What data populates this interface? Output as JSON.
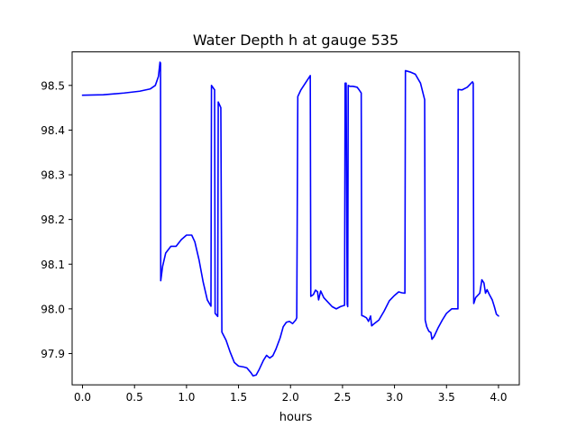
{
  "chart_data": {
    "type": "line",
    "title": "Water Depth h at gauge 535",
    "xlabel": "hours",
    "ylabel": "",
    "xlim": [
      -0.1,
      4.2
    ],
    "ylim": [
      97.83,
      98.575
    ],
    "xticks": [
      0.0,
      0.5,
      1.0,
      1.5,
      2.0,
      2.5,
      3.0,
      3.5,
      4.0
    ],
    "xtick_labels": [
      "0.0",
      "0.5",
      "1.0",
      "1.5",
      "2.0",
      "2.5",
      "3.0",
      "3.5",
      "4.0"
    ],
    "yticks": [
      97.9,
      98.0,
      98.1,
      98.2,
      98.3,
      98.4,
      98.5
    ],
    "ytick_labels": [
      "97.9",
      "98.0",
      "98.1",
      "98.2",
      "98.3",
      "98.4",
      "98.5"
    ],
    "grid": false,
    "series": [
      {
        "color": "#0000ff",
        "points": [
          [
            0.0,
            98.478
          ],
          [
            0.2,
            98.479
          ],
          [
            0.4,
            98.483
          ],
          [
            0.55,
            98.487
          ],
          [
            0.65,
            98.492
          ],
          [
            0.7,
            98.5
          ],
          [
            0.73,
            98.52
          ],
          [
            0.745,
            98.552
          ],
          [
            0.75,
            98.55
          ],
          [
            0.752,
            98.063
          ],
          [
            0.77,
            98.095
          ],
          [
            0.8,
            98.125
          ],
          [
            0.85,
            98.14
          ],
          [
            0.9,
            98.14
          ],
          [
            0.95,
            98.155
          ],
          [
            1.0,
            98.165
          ],
          [
            1.05,
            98.165
          ],
          [
            1.08,
            98.15
          ],
          [
            1.12,
            98.11
          ],
          [
            1.16,
            98.06
          ],
          [
            1.2,
            98.02
          ],
          [
            1.235,
            98.006
          ],
          [
            1.24,
            98.5
          ],
          [
            1.27,
            98.49
          ],
          [
            1.275,
            97.99
          ],
          [
            1.3,
            97.983
          ],
          [
            1.305,
            98.463
          ],
          [
            1.33,
            98.45
          ],
          [
            1.34,
            97.948
          ],
          [
            1.38,
            97.93
          ],
          [
            1.42,
            97.903
          ],
          [
            1.46,
            97.88
          ],
          [
            1.5,
            97.872
          ],
          [
            1.55,
            97.87
          ],
          [
            1.58,
            97.868
          ],
          [
            1.62,
            97.857
          ],
          [
            1.64,
            97.85
          ],
          [
            1.67,
            97.852
          ],
          [
            1.7,
            97.865
          ],
          [
            1.74,
            97.885
          ],
          [
            1.77,
            97.896
          ],
          [
            1.8,
            97.89
          ],
          [
            1.83,
            97.895
          ],
          [
            1.86,
            97.91
          ],
          [
            1.9,
            97.935
          ],
          [
            1.93,
            97.96
          ],
          [
            1.96,
            97.97
          ],
          [
            1.99,
            97.972
          ],
          [
            2.02,
            97.967
          ],
          [
            2.05,
            97.975
          ],
          [
            2.06,
            97.98
          ],
          [
            2.07,
            98.475
          ],
          [
            2.1,
            98.49
          ],
          [
            2.19,
            98.522
          ],
          [
            2.195,
            98.028
          ],
          [
            2.22,
            98.032
          ],
          [
            2.24,
            98.042
          ],
          [
            2.26,
            98.038
          ],
          [
            2.27,
            98.02
          ],
          [
            2.29,
            98.04
          ],
          [
            2.32,
            98.025
          ],
          [
            2.36,
            98.015
          ],
          [
            2.4,
            98.005
          ],
          [
            2.44,
            98.0
          ],
          [
            2.48,
            98.005
          ],
          [
            2.52,
            98.008
          ],
          [
            2.525,
            98.505
          ],
          [
            2.535,
            98.505
          ],
          [
            2.545,
            98.01
          ],
          [
            2.55,
            98.005
          ],
          [
            2.555,
            98.5
          ],
          [
            2.57,
            98.498
          ],
          [
            2.6,
            98.498
          ],
          [
            2.64,
            98.496
          ],
          [
            2.66,
            98.49
          ],
          [
            2.68,
            98.483
          ],
          [
            2.685,
            97.985
          ],
          [
            2.7,
            97.984
          ],
          [
            2.73,
            97.98
          ],
          [
            2.75,
            97.972
          ],
          [
            2.77,
            97.984
          ],
          [
            2.78,
            97.962
          ],
          [
            2.8,
            97.966
          ],
          [
            2.85,
            97.975
          ],
          [
            2.9,
            97.995
          ],
          [
            2.95,
            98.018
          ],
          [
            3.0,
            98.03
          ],
          [
            3.04,
            98.038
          ],
          [
            3.07,
            98.036
          ],
          [
            3.1,
            98.035
          ],
          [
            3.105,
            98.533
          ],
          [
            3.15,
            98.53
          ],
          [
            3.2,
            98.525
          ],
          [
            3.25,
            98.505
          ],
          [
            3.29,
            98.468
          ],
          [
            3.295,
            97.975
          ],
          [
            3.31,
            97.96
          ],
          [
            3.33,
            97.95
          ],
          [
            3.35,
            97.947
          ],
          [
            3.36,
            97.932
          ],
          [
            3.38,
            97.938
          ],
          [
            3.42,
            97.958
          ],
          [
            3.46,
            97.975
          ],
          [
            3.5,
            97.99
          ],
          [
            3.55,
            98.0
          ],
          [
            3.6,
            98.0
          ],
          [
            3.61,
            98.0
          ],
          [
            3.612,
            98.491
          ],
          [
            3.65,
            98.49
          ],
          [
            3.7,
            98.496
          ],
          [
            3.75,
            98.508
          ],
          [
            3.757,
            98.505
          ],
          [
            3.762,
            98.012
          ],
          [
            3.78,
            98.025
          ],
          [
            3.82,
            98.035
          ],
          [
            3.84,
            98.065
          ],
          [
            3.86,
            98.058
          ],
          [
            3.875,
            98.035
          ],
          [
            3.89,
            98.043
          ],
          [
            3.91,
            98.033
          ],
          [
            3.94,
            98.02
          ],
          [
            3.96,
            98.005
          ],
          [
            3.98,
            97.988
          ],
          [
            4.0,
            97.984
          ]
        ]
      }
    ]
  }
}
